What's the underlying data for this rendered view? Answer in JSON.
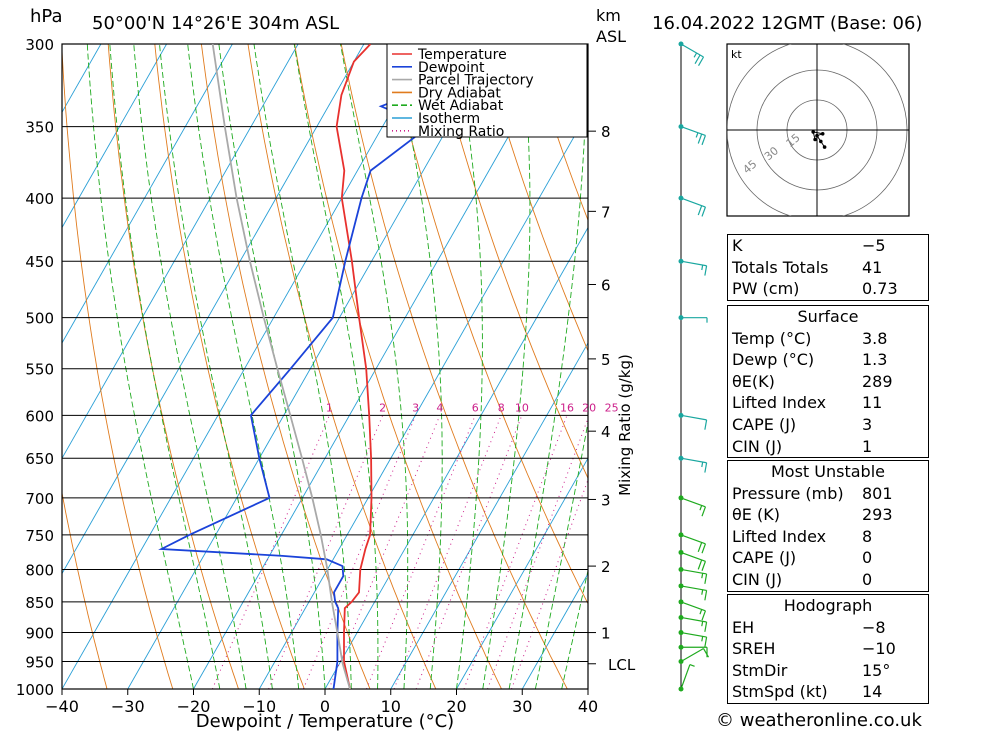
{
  "header": {
    "pressure_unit": "hPa",
    "location": "50°00'N  14°26'E  304m  ASL",
    "km_label": "km",
    "asl_label": "ASL",
    "datetime": "16.04.2022  12GMT  (Base: 06)"
  },
  "colors": {
    "temperature": "#e8312e",
    "dewpoint": "#1b43d9",
    "parcel": "#a9a9a9",
    "dry_adiabat": "#e07b1e",
    "wet_adiabat": "#1faa1f",
    "isotherm": "#2a9fd6",
    "mixing_ratio": "#cc1f8a"
  },
  "chart_data": {
    "type": "line",
    "title": "50°00'N  14°26'E  304m  ASL",
    "xlabel": "Dewpoint / Temperature (°C)",
    "ylabel": "hPa",
    "x_ticks": [
      "−40",
      "−30",
      "−20",
      "−10",
      "0",
      "10",
      "20",
      "30",
      "40"
    ],
    "xlim": [
      -40,
      40
    ],
    "pressure_levels": [
      300,
      350,
      400,
      450,
      500,
      550,
      600,
      650,
      700,
      750,
      800,
      850,
      900,
      950,
      1000
    ],
    "ylim": [
      1000,
      300
    ],
    "km_ticks": [
      {
        "label": "8",
        "p": 353
      },
      {
        "label": "7",
        "p": 410
      },
      {
        "label": "6",
        "p": 470
      },
      {
        "label": "5",
        "p": 540
      },
      {
        "label": "4",
        "p": 618
      },
      {
        "label": "3",
        "p": 702
      },
      {
        "label": "2",
        "p": 795
      },
      {
        "label": "1",
        "p": 900
      },
      {
        "label": "LCL",
        "p": 954
      }
    ],
    "right_label": "Mixing Ratio (g/kg)",
    "mixing_ratio_labels": [
      "1",
      "2",
      "3",
      "4",
      "6",
      "8",
      "10",
      "16",
      "20",
      "25"
    ],
    "mixing_ratio_label_level": 600,
    "mixing_ratio_values": [
      1,
      2,
      3,
      4,
      6,
      8,
      10,
      16,
      20,
      25
    ],
    "series": [
      {
        "name": "Temperature",
        "points": [
          [
            1000,
            3.8
          ],
          [
            950,
            0.5
          ],
          [
            900,
            -2
          ],
          [
            860,
            -4
          ],
          [
            850,
            -3.5
          ],
          [
            835,
            -3.2
          ],
          [
            800,
            -5
          ],
          [
            770,
            -6
          ],
          [
            750,
            -6.5
          ],
          [
            700,
            -9.5
          ],
          [
            650,
            -13
          ],
          [
            600,
            -17
          ],
          [
            550,
            -21.5
          ],
          [
            500,
            -27
          ],
          [
            450,
            -33
          ],
          [
            400,
            -40
          ],
          [
            380,
            -42
          ],
          [
            350,
            -47
          ],
          [
            330,
            -49
          ],
          [
            310,
            -50
          ],
          [
            300,
            -49
          ]
        ]
      },
      {
        "name": "Dewpoint",
        "points": [
          [
            1000,
            1.3
          ],
          [
            950,
            -0.5
          ],
          [
            900,
            -3
          ],
          [
            860,
            -5
          ],
          [
            850,
            -6
          ],
          [
            835,
            -7
          ],
          [
            810,
            -7
          ],
          [
            795,
            -8
          ],
          [
            785,
            -11
          ],
          [
            780,
            -18
          ],
          [
            770,
            -37
          ],
          [
            750,
            -34
          ],
          [
            700,
            -25
          ],
          [
            650,
            -30
          ],
          [
            600,
            -35
          ],
          [
            550,
            -33
          ],
          [
            500,
            -31
          ],
          [
            450,
            -34
          ],
          [
            400,
            -37
          ],
          [
            380,
            -38
          ],
          [
            350,
            -33
          ],
          [
            337,
            -42
          ],
          [
            325,
            -36
          ],
          [
            310,
            -40
          ],
          [
            300,
            -40
          ]
        ]
      },
      {
        "name": "Parcel Trajectory",
        "points": [
          [
            1000,
            3.8
          ],
          [
            954,
            0.5
          ],
          [
            900,
            -3
          ],
          [
            850,
            -6.5
          ],
          [
            800,
            -10
          ],
          [
            750,
            -14
          ],
          [
            700,
            -18.5
          ],
          [
            650,
            -23.5
          ],
          [
            600,
            -29
          ],
          [
            550,
            -35
          ],
          [
            500,
            -41.5
          ],
          [
            450,
            -48.5
          ],
          [
            400,
            -56
          ],
          [
            350,
            -64
          ],
          [
            300,
            -73
          ]
        ]
      }
    ],
    "legend": {
      "placement": "top-right",
      "entries": [
        "Temperature",
        "Dewpoint",
        "Parcel Trajectory",
        "Dry Adiabat",
        "Wet Adiabat",
        "Isotherm",
        "Mixing Ratio"
      ]
    },
    "wind_barbs": [
      {
        "p": 1000,
        "dir": 200,
        "kt": 5
      },
      {
        "p": 950,
        "dir": 240,
        "kt": 10
      },
      {
        "p": 925,
        "dir": 270,
        "kt": 10
      },
      {
        "p": 900,
        "dir": 280,
        "kt": 15
      },
      {
        "p": 875,
        "dir": 280,
        "kt": 15
      },
      {
        "p": 850,
        "dir": 290,
        "kt": 15
      },
      {
        "p": 825,
        "dir": 280,
        "kt": 15
      },
      {
        "p": 800,
        "dir": 280,
        "kt": 15
      },
      {
        "p": 775,
        "dir": 290,
        "kt": 20
      },
      {
        "p": 750,
        "dir": 290,
        "kt": 20
      },
      {
        "p": 700,
        "dir": 290,
        "kt": 15
      },
      {
        "p": 650,
        "dir": 280,
        "kt": 15
      },
      {
        "p": 600,
        "dir": 280,
        "kt": 10
      },
      {
        "p": 500,
        "dir": 270,
        "kt": 5
      },
      {
        "p": 450,
        "dir": 280,
        "kt": 15
      },
      {
        "p": 400,
        "dir": 290,
        "kt": 20
      },
      {
        "p": 350,
        "dir": 290,
        "kt": 25
      },
      {
        "p": 300,
        "dir": 300,
        "kt": 25
      }
    ]
  },
  "hodograph": {
    "unit": "kt",
    "ring_labels": [
      "15",
      "30",
      "45"
    ],
    "points": [
      [
        8,
        -18
      ],
      [
        4,
        -12
      ],
      [
        0,
        -6
      ],
      [
        6,
        -4
      ],
      [
        -4,
        -2
      ],
      [
        -2,
        -10
      ]
    ]
  },
  "indices": {
    "rows": [
      {
        "label": "K",
        "value": "−5"
      },
      {
        "label": "Totals Totals",
        "value": "41"
      },
      {
        "label": "PW (cm)",
        "value": "0.73"
      }
    ],
    "surface": {
      "title": "Surface",
      "rows": [
        {
          "label": "Temp (°C)",
          "value": "3.8"
        },
        {
          "label": "Dewp (°C)",
          "value": "1.3"
        },
        {
          "label": "θE(K)",
          "value": "289"
        },
        {
          "label": "Lifted Index",
          "value": "11"
        },
        {
          "label": "CAPE (J)",
          "value": "3"
        },
        {
          "label": "CIN (J)",
          "value": "1"
        }
      ]
    },
    "most_unstable": {
      "title": "Most Unstable",
      "rows": [
        {
          "label": "Pressure (mb)",
          "value": "801"
        },
        {
          "label": "θE (K)",
          "value": "293"
        },
        {
          "label": "Lifted Index",
          "value": "8"
        },
        {
          "label": "CAPE (J)",
          "value": "0"
        },
        {
          "label": "CIN (J)",
          "value": "0"
        }
      ]
    },
    "hodograph": {
      "title": "Hodograph",
      "rows": [
        {
          "label": "EH",
          "value": "−8"
        },
        {
          "label": "SREH",
          "value": "−10"
        },
        {
          "label": "StmDir",
          "value": "15°"
        },
        {
          "label": "StmSpd (kt)",
          "value": "14"
        }
      ]
    }
  },
  "credit": "© weatheronline.co.uk"
}
